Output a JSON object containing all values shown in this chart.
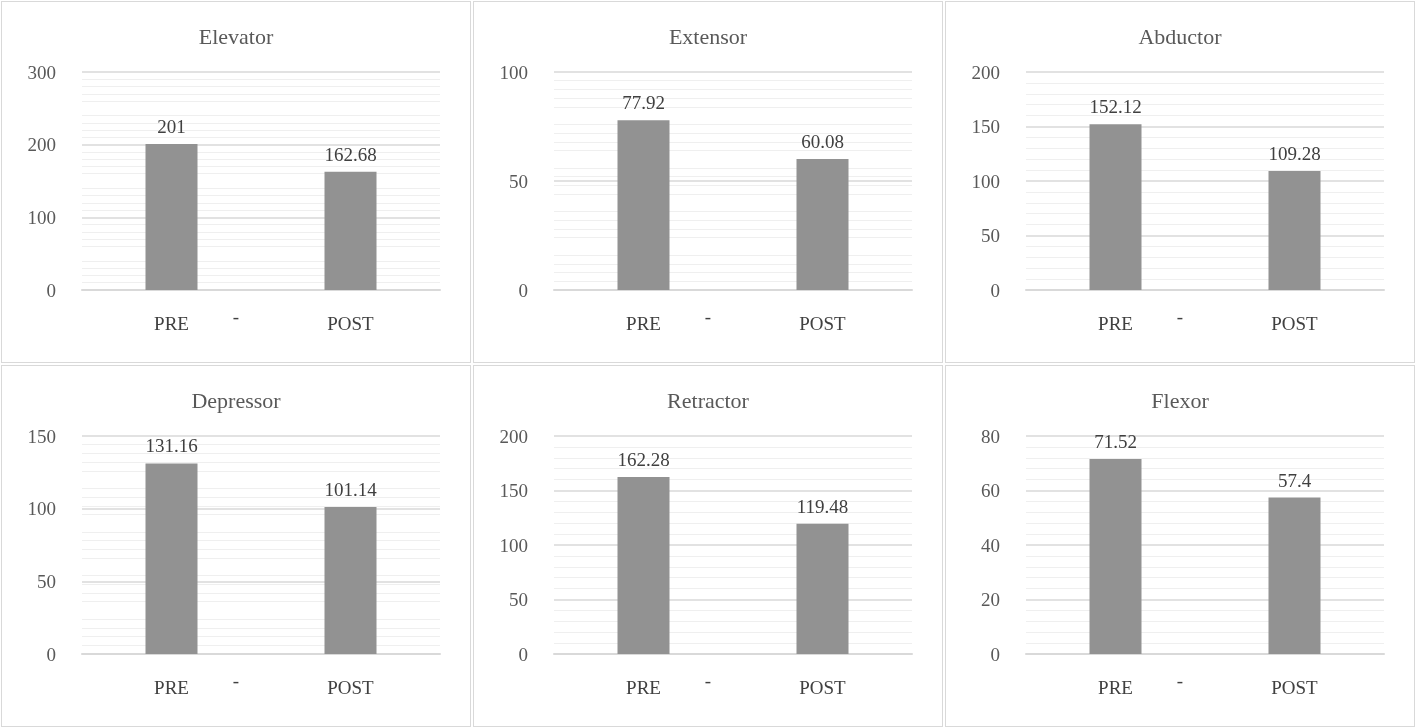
{
  "chart_data": [
    {
      "type": "bar",
      "title": "Elevator",
      "categories": [
        "PRE",
        "POST"
      ],
      "values": [
        201,
        162.68
      ],
      "color": "#929292",
      "ylim": [
        0,
        300
      ],
      "yticks": [
        0,
        100,
        200,
        300
      ],
      "grid": "y",
      "data_labels": true,
      "annotations": [
        "-"
      ]
    },
    {
      "type": "bar",
      "title": "Extensor",
      "categories": [
        "PRE",
        "POST"
      ],
      "values": [
        77.92,
        60.08
      ],
      "color": "#929292",
      "ylim": [
        0,
        100
      ],
      "yticks": [
        0,
        50,
        100
      ],
      "grid": "y",
      "data_labels": true,
      "annotations": [
        "-"
      ]
    },
    {
      "type": "bar",
      "title": "Abductor",
      "categories": [
        "PRE",
        "POST"
      ],
      "values": [
        152.12,
        109.28
      ],
      "color": "#929292",
      "ylim": [
        0,
        200
      ],
      "yticks": [
        0,
        50,
        100,
        150,
        200
      ],
      "grid": "y",
      "data_labels": true,
      "annotations": [
        "-"
      ]
    },
    {
      "type": "bar",
      "title": "Depressor",
      "categories": [
        "PRE",
        "POST"
      ],
      "values": [
        131.16,
        101.14
      ],
      "color": "#929292",
      "ylim": [
        0,
        150
      ],
      "yticks": [
        0,
        50,
        100,
        150
      ],
      "grid": "y",
      "data_labels": true,
      "annotations": [
        "-"
      ]
    },
    {
      "type": "bar",
      "title": "Retractor",
      "categories": [
        "PRE",
        "POST"
      ],
      "values": [
        162.28,
        119.48
      ],
      "color": "#929292",
      "ylim": [
        0,
        200
      ],
      "yticks": [
        0,
        50,
        100,
        150,
        200
      ],
      "grid": "y",
      "data_labels": true,
      "annotations": [
        "-"
      ]
    },
    {
      "type": "bar",
      "title": "Flexor",
      "categories": [
        "PRE",
        "POST"
      ],
      "values": [
        71.52,
        57.4
      ],
      "color": "#929292",
      "ylim": [
        0,
        80
      ],
      "yticks": [
        0,
        20,
        40,
        60,
        80
      ],
      "grid": "y",
      "data_labels": true,
      "annotations": [
        "-"
      ]
    }
  ]
}
